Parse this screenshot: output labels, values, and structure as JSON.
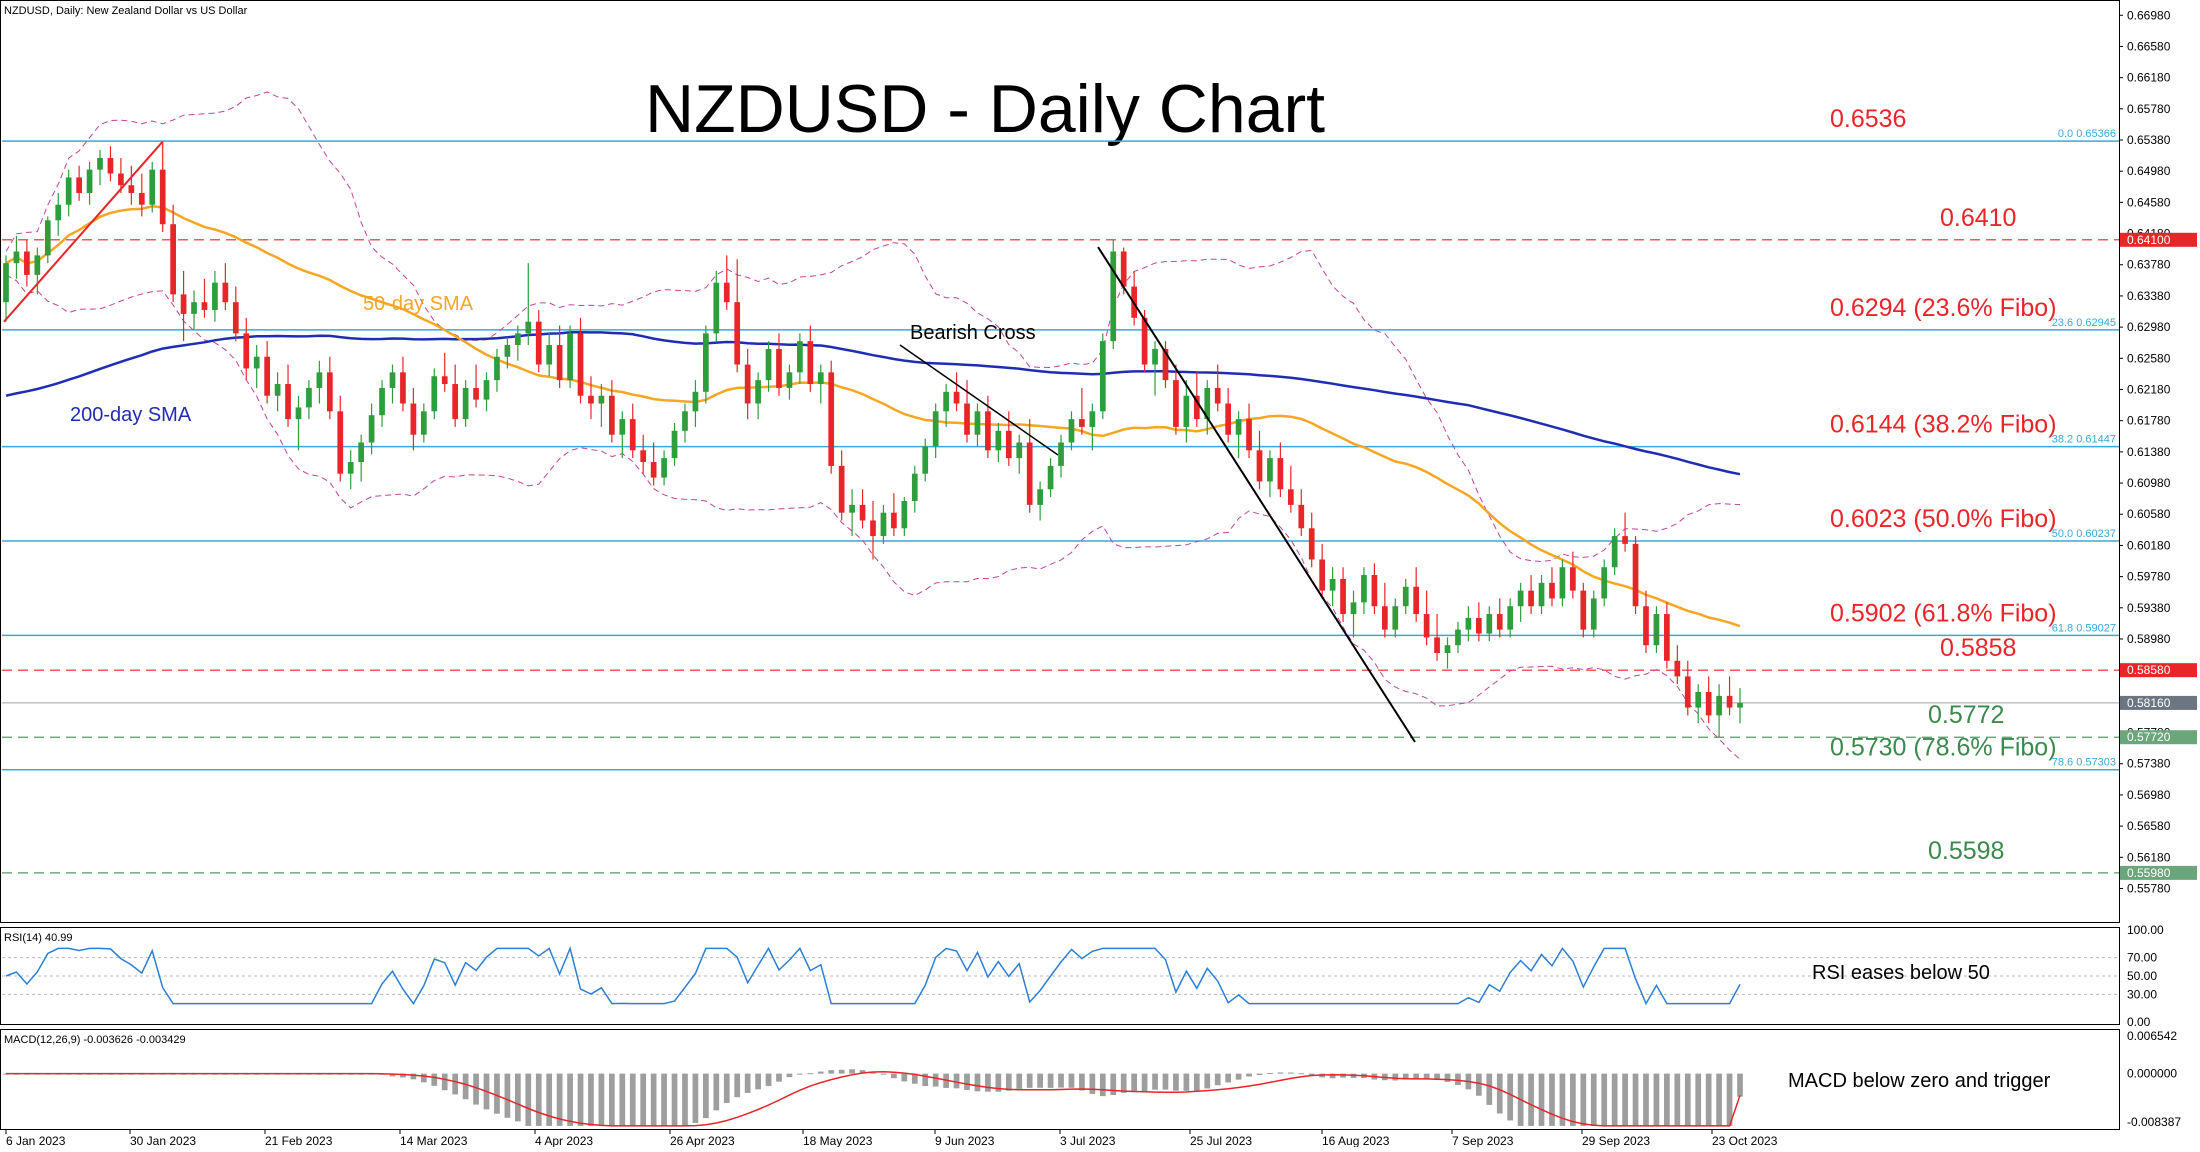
{
  "header": {
    "symbol_line": "NZDUSD, Daily:  New Zealand Dollar vs US Dollar",
    "rsi_line": "RSI(14) 40.99",
    "macd_line": "MACD(12,26,9) -0.003626 -0.003429"
  },
  "title": "NZDUSD - Daily Chart",
  "colors": {
    "bull": "#2e9d3c",
    "bear": "#e8262a",
    "sma50": "#f5a623",
    "sma200": "#1f2db4",
    "bollinger": "#c2449a",
    "fibo_line": "#3aa8d8",
    "red_level": "#e8262a",
    "green_level": "#5a9a6a",
    "rsi": "#2c7fd6",
    "macd_hist": "#9e9e9e",
    "macd_signal": "#e8262a"
  },
  "chart_data": [
    {
      "type": "candlestick",
      "ylim": [
        0.5535,
        0.6715
      ],
      "y_ticks": [
        "0.66980",
        "0.66580",
        "0.66180",
        "0.65780",
        "0.65380",
        "0.64980",
        "0.64580",
        "0.64180",
        "0.63780",
        "0.63380",
        "0.62980",
        "0.62580",
        "0.62180",
        "0.61780",
        "0.61380",
        "0.60980",
        "0.60580",
        "0.60180",
        "0.59780",
        "0.59380",
        "0.58980",
        "0.58580",
        "0.58180",
        "0.57780",
        "0.57380",
        "0.56980",
        "0.56580",
        "0.56180",
        "0.55780"
      ],
      "x_ticks": [
        "6 Jan 2023",
        "30 Jan 2023",
        "21 Feb 2023",
        "14 Mar 2023",
        "4 Apr 2023",
        "26 Apr 2023",
        "18 May 2023",
        "9 Jun 2023",
        "3 Jul 2023",
        "25 Jul 2023",
        "16 Aug 2023",
        "7 Sep 2023",
        "29 Sep 2023",
        "23 Oct 2023"
      ],
      "fibo_levels": [
        {
          "value": 0.65366,
          "tag": "0.0 0.65366",
          "label": "0.6536"
        },
        {
          "value": 0.62945,
          "tag": "23.6 0.62945",
          "label": "0.6294 (23.6% Fibo)"
        },
        {
          "value": 0.61447,
          "tag": "38.2 0.61447",
          "label": "0.6144 (38.2% Fibo)"
        },
        {
          "value": 0.60237,
          "tag": "50.0 0.60237",
          "label": "0.6023 (50.0% Fibo)"
        },
        {
          "value": 0.59027,
          "tag": "61.8 0.59027",
          "label": "0.5902 (61.8% Fibo)"
        },
        {
          "value": 0.57303,
          "tag": "78.6 0.57303",
          "label": "0.5730 (78.6% Fibo)"
        }
      ],
      "red_levels": [
        {
          "value": 0.641,
          "tag": "0.64100",
          "label": "0.6410"
        },
        {
          "value": 0.5858,
          "tag": "0.58580",
          "label": "0.5858"
        }
      ],
      "green_levels": [
        {
          "value": 0.5772,
          "tag": "0.57720",
          "label": "0.5772"
        },
        {
          "value": 0.5598,
          "tag": "0.55980",
          "label": "0.5598"
        }
      ],
      "current_price": {
        "value": 0.5816,
        "tag": "0.58160"
      },
      "annotations": [
        "Bearish Cross",
        "50-day SMA",
        "200-day SMA"
      ],
      "candles": [
        [
          0.633,
          0.639,
          0.6305,
          0.638
        ],
        [
          0.638,
          0.6415,
          0.636,
          0.6395
        ],
        [
          0.6395,
          0.641,
          0.635,
          0.6365
        ],
        [
          0.6365,
          0.64,
          0.634,
          0.639
        ],
        [
          0.639,
          0.644,
          0.638,
          0.6435
        ],
        [
          0.6435,
          0.647,
          0.6415,
          0.6455
        ],
        [
          0.6455,
          0.65,
          0.644,
          0.649
        ],
        [
          0.649,
          0.6505,
          0.646,
          0.647
        ],
        [
          0.647,
          0.651,
          0.6455,
          0.65
        ],
        [
          0.65,
          0.6525,
          0.648,
          0.6515
        ],
        [
          0.6515,
          0.653,
          0.6485,
          0.6495
        ],
        [
          0.6495,
          0.6515,
          0.647,
          0.648
        ],
        [
          0.648,
          0.6505,
          0.6455,
          0.647
        ],
        [
          0.647,
          0.6495,
          0.644,
          0.6455
        ],
        [
          0.6455,
          0.651,
          0.6445,
          0.65
        ],
        [
          0.65,
          0.6536,
          0.642,
          0.643
        ],
        [
          0.643,
          0.6455,
          0.633,
          0.634
        ],
        [
          0.634,
          0.637,
          0.628,
          0.6315
        ],
        [
          0.6315,
          0.6345,
          0.6295,
          0.633
        ],
        [
          0.633,
          0.636,
          0.631,
          0.632
        ],
        [
          0.632,
          0.637,
          0.6305,
          0.6355
        ],
        [
          0.6355,
          0.638,
          0.632,
          0.633
        ],
        [
          0.633,
          0.635,
          0.628,
          0.629
        ],
        [
          0.629,
          0.631,
          0.623,
          0.6245
        ],
        [
          0.6245,
          0.6275,
          0.622,
          0.626
        ],
        [
          0.626,
          0.628,
          0.62,
          0.621
        ],
        [
          0.621,
          0.624,
          0.619,
          0.6225
        ],
        [
          0.6225,
          0.625,
          0.617,
          0.618
        ],
        [
          0.618,
          0.621,
          0.614,
          0.6195
        ],
        [
          0.6195,
          0.623,
          0.618,
          0.622
        ],
        [
          0.622,
          0.6255,
          0.62,
          0.624
        ],
        [
          0.624,
          0.626,
          0.618,
          0.619
        ],
        [
          0.619,
          0.621,
          0.61,
          0.611
        ],
        [
          0.611,
          0.614,
          0.609,
          0.6125
        ],
        [
          0.6125,
          0.616,
          0.61,
          0.615
        ],
        [
          0.615,
          0.62,
          0.6135,
          0.6185
        ],
        [
          0.6185,
          0.623,
          0.617,
          0.622
        ],
        [
          0.622,
          0.625,
          0.62,
          0.624
        ],
        [
          0.624,
          0.626,
          0.619,
          0.62
        ],
        [
          0.62,
          0.622,
          0.614,
          0.616
        ],
        [
          0.616,
          0.62,
          0.615,
          0.619
        ],
        [
          0.619,
          0.6245,
          0.618,
          0.6235
        ],
        [
          0.6235,
          0.6265,
          0.6215,
          0.6225
        ],
        [
          0.6225,
          0.625,
          0.617,
          0.618
        ],
        [
          0.618,
          0.623,
          0.617,
          0.622
        ],
        [
          0.622,
          0.625,
          0.6195,
          0.6205
        ],
        [
          0.6205,
          0.624,
          0.619,
          0.623
        ],
        [
          0.623,
          0.627,
          0.6215,
          0.626
        ],
        [
          0.626,
          0.6285,
          0.6245,
          0.6275
        ],
        [
          0.6275,
          0.63,
          0.6255,
          0.629
        ],
        [
          0.629,
          0.638,
          0.6275,
          0.6305
        ],
        [
          0.6305,
          0.632,
          0.624,
          0.625
        ],
        [
          0.625,
          0.629,
          0.6235,
          0.6275
        ],
        [
          0.6275,
          0.63,
          0.622,
          0.623
        ],
        [
          0.623,
          0.63,
          0.622,
          0.629
        ],
        [
          0.629,
          0.631,
          0.62,
          0.621
        ],
        [
          0.621,
          0.6235,
          0.618,
          0.62
        ],
        [
          0.62,
          0.6225,
          0.617,
          0.621
        ],
        [
          0.621,
          0.623,
          0.615,
          0.616
        ],
        [
          0.616,
          0.619,
          0.613,
          0.618
        ],
        [
          0.618,
          0.62,
          0.613,
          0.614
        ],
        [
          0.614,
          0.616,
          0.611,
          0.6125
        ],
        [
          0.6125,
          0.615,
          0.6095,
          0.6105
        ],
        [
          0.6105,
          0.614,
          0.6095,
          0.613
        ],
        [
          0.613,
          0.6175,
          0.612,
          0.6165
        ],
        [
          0.6165,
          0.62,
          0.615,
          0.619
        ],
        [
          0.619,
          0.623,
          0.617,
          0.6215
        ],
        [
          0.6215,
          0.63,
          0.62,
          0.629
        ],
        [
          0.629,
          0.637,
          0.628,
          0.6355
        ],
        [
          0.6355,
          0.639,
          0.632,
          0.633
        ],
        [
          0.633,
          0.6385,
          0.624,
          0.625
        ],
        [
          0.625,
          0.627,
          0.618,
          0.62
        ],
        [
          0.62,
          0.624,
          0.618,
          0.623
        ],
        [
          0.623,
          0.628,
          0.6215,
          0.627
        ],
        [
          0.627,
          0.629,
          0.621,
          0.622
        ],
        [
          0.622,
          0.625,
          0.6205,
          0.624
        ],
        [
          0.624,
          0.629,
          0.6225,
          0.628
        ],
        [
          0.628,
          0.63,
          0.6215,
          0.6225
        ],
        [
          0.6225,
          0.625,
          0.62,
          0.624
        ],
        [
          0.624,
          0.6255,
          0.611,
          0.612
        ],
        [
          0.612,
          0.614,
          0.605,
          0.606
        ],
        [
          0.606,
          0.609,
          0.603,
          0.607
        ],
        [
          0.607,
          0.609,
          0.604,
          0.605
        ],
        [
          0.605,
          0.6075,
          0.6,
          0.603
        ],
        [
          0.603,
          0.607,
          0.602,
          0.606
        ],
        [
          0.606,
          0.6085,
          0.603,
          0.604
        ],
        [
          0.604,
          0.608,
          0.603,
          0.6075
        ],
        [
          0.6075,
          0.612,
          0.606,
          0.611
        ],
        [
          0.611,
          0.6155,
          0.61,
          0.6145
        ],
        [
          0.6145,
          0.62,
          0.613,
          0.619
        ],
        [
          0.619,
          0.6225,
          0.617,
          0.6215
        ],
        [
          0.6215,
          0.624,
          0.619,
          0.62
        ],
        [
          0.62,
          0.623,
          0.615,
          0.616
        ],
        [
          0.616,
          0.62,
          0.6145,
          0.619
        ],
        [
          0.619,
          0.621,
          0.613,
          0.614
        ],
        [
          0.614,
          0.6175,
          0.6125,
          0.6165
        ],
        [
          0.6165,
          0.619,
          0.612,
          0.613
        ],
        [
          0.613,
          0.616,
          0.611,
          0.615
        ],
        [
          0.615,
          0.618,
          0.606,
          0.607
        ],
        [
          0.607,
          0.61,
          0.605,
          0.609
        ],
        [
          0.609,
          0.613,
          0.608,
          0.612
        ],
        [
          0.612,
          0.616,
          0.6105,
          0.615
        ],
        [
          0.615,
          0.619,
          0.614,
          0.618
        ],
        [
          0.618,
          0.622,
          0.616,
          0.617
        ],
        [
          0.617,
          0.62,
          0.614,
          0.619
        ],
        [
          0.619,
          0.629,
          0.618,
          0.628
        ],
        [
          0.628,
          0.641,
          0.627,
          0.6395
        ],
        [
          0.6395,
          0.64,
          0.634,
          0.635
        ],
        [
          0.635,
          0.637,
          0.63,
          0.631
        ],
        [
          0.631,
          0.632,
          0.624,
          0.625
        ],
        [
          0.625,
          0.628,
          0.621,
          0.627
        ],
        [
          0.627,
          0.628,
          0.622,
          0.623
        ],
        [
          0.623,
          0.625,
          0.616,
          0.617
        ],
        [
          0.617,
          0.623,
          0.615,
          0.621
        ],
        [
          0.621,
          0.624,
          0.617,
          0.618
        ],
        [
          0.618,
          0.623,
          0.616,
          0.622
        ],
        [
          0.622,
          0.625,
          0.619,
          0.62
        ],
        [
          0.62,
          0.622,
          0.615,
          0.616
        ],
        [
          0.616,
          0.619,
          0.613,
          0.618
        ],
        [
          0.618,
          0.62,
          0.613,
          0.614
        ],
        [
          0.614,
          0.6165,
          0.609,
          0.61
        ],
        [
          0.61,
          0.614,
          0.608,
          0.613
        ],
        [
          0.613,
          0.615,
          0.608,
          0.609
        ],
        [
          0.609,
          0.612,
          0.606,
          0.607
        ],
        [
          0.607,
          0.609,
          0.603,
          0.604
        ],
        [
          0.604,
          0.606,
          0.599,
          0.6
        ],
        [
          0.6,
          0.602,
          0.595,
          0.596
        ],
        [
          0.596,
          0.599,
          0.594,
          0.5975
        ],
        [
          0.5975,
          0.599,
          0.592,
          0.593
        ],
        [
          0.593,
          0.596,
          0.59,
          0.5945
        ],
        [
          0.5945,
          0.599,
          0.593,
          0.598
        ],
        [
          0.598,
          0.5995,
          0.593,
          0.594
        ],
        [
          0.594,
          0.597,
          0.59,
          0.591
        ],
        [
          0.591,
          0.595,
          0.59,
          0.594
        ],
        [
          0.594,
          0.5975,
          0.593,
          0.5965
        ],
        [
          0.5965,
          0.599,
          0.592,
          0.593
        ],
        [
          0.593,
          0.596,
          0.589,
          0.59
        ],
        [
          0.59,
          0.593,
          0.587,
          0.588
        ],
        [
          0.588,
          0.59,
          0.586,
          0.589
        ],
        [
          0.589,
          0.592,
          0.588,
          0.591
        ],
        [
          0.591,
          0.594,
          0.5895,
          0.5925
        ],
        [
          0.5925,
          0.5945,
          0.5895,
          0.5905
        ],
        [
          0.5905,
          0.594,
          0.5895,
          0.593
        ],
        [
          0.593,
          0.595,
          0.59,
          0.591
        ],
        [
          0.591,
          0.595,
          0.59,
          0.594
        ],
        [
          0.594,
          0.597,
          0.592,
          0.596
        ],
        [
          0.596,
          0.598,
          0.593,
          0.594
        ],
        [
          0.594,
          0.598,
          0.593,
          0.597
        ],
        [
          0.597,
          0.599,
          0.594,
          0.595
        ],
        [
          0.595,
          0.6,
          0.594,
          0.599
        ],
        [
          0.599,
          0.601,
          0.595,
          0.596
        ],
        [
          0.596,
          0.597,
          0.59,
          0.591
        ],
        [
          0.591,
          0.596,
          0.59,
          0.595
        ],
        [
          0.595,
          0.6,
          0.594,
          0.599
        ],
        [
          0.599,
          0.604,
          0.598,
          0.603
        ],
        [
          0.603,
          0.606,
          0.601,
          0.602
        ],
        [
          0.602,
          0.603,
          0.593,
          0.594
        ],
        [
          0.594,
          0.596,
          0.588,
          0.589
        ],
        [
          0.589,
          0.594,
          0.588,
          0.593
        ],
        [
          0.593,
          0.5945,
          0.586,
          0.587
        ],
        [
          0.587,
          0.589,
          0.584,
          0.585
        ],
        [
          0.585,
          0.587,
          0.58,
          0.581
        ],
        [
          0.581,
          0.584,
          0.579,
          0.583
        ],
        [
          0.583,
          0.585,
          0.579,
          0.58
        ],
        [
          0.58,
          0.584,
          0.5772,
          0.5825
        ],
        [
          0.5825,
          0.585,
          0.58,
          0.581
        ],
        [
          0.581,
          0.5835,
          0.579,
          0.5816
        ]
      ]
    },
    {
      "type": "line",
      "name": "RSI(14)",
      "current": 40.99,
      "ylim": [
        0,
        100
      ],
      "y_ticks": [
        "100.00",
        "70.00",
        "50.00",
        "30.00",
        "0.00"
      ],
      "annotation": "RSI eases below 50"
    },
    {
      "type": "bar",
      "name": "MACD(12,26,9)",
      "macd": -0.003626,
      "signal": -0.003429,
      "y_ticks": [
        "0.006542",
        "0.000000",
        "-0.008387"
      ],
      "annotation": "MACD below zero and trigger"
    }
  ]
}
